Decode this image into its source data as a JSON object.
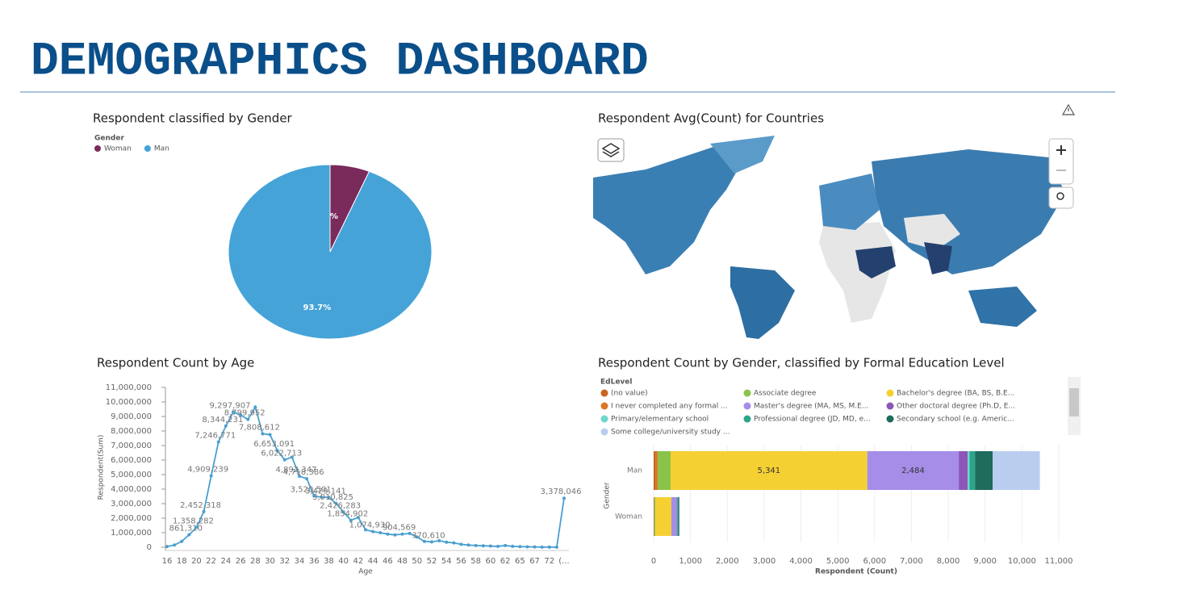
{
  "title": "DEMOGRAPHICS DASHBOARD",
  "chart_data": [
    {
      "type": "pie",
      "title": "Respondent classified by Gender",
      "legend_title": "Gender",
      "categories": [
        "Woman",
        "Man"
      ],
      "values": [
        6.3,
        93.7
      ],
      "value_labels": [
        "6.3%",
        "93.7%"
      ],
      "colors": [
        "#7b2a5c",
        "#45a3d8"
      ]
    },
    {
      "type": "map",
      "title": "Respondent Avg(Count) for Countries"
    },
    {
      "type": "line",
      "title": "Respondent Count by Age",
      "xlabel": "Age",
      "ylabel": "Respondent(Sum)",
      "categories": [
        "16",
        null,
        "18",
        null,
        "20",
        null,
        "22",
        null,
        "24",
        null,
        "26",
        null,
        "28",
        null,
        "30",
        null,
        "32",
        null,
        "34",
        null,
        "36",
        null,
        "38",
        null,
        "40",
        null,
        "42",
        null,
        "44",
        null,
        "46",
        null,
        "48",
        null,
        "50",
        null,
        "52",
        null,
        "54",
        null,
        "56",
        null,
        "58",
        null,
        "60",
        null,
        "62",
        null,
        "65",
        null,
        "67",
        null,
        "72",
        null,
        "(..."
      ],
      "values": [
        50000,
        150000,
        400000,
        861310,
        1358282,
        2452318,
        4909239,
        7246771,
        8344231,
        9297907,
        9100000,
        8799952,
        9650000,
        7808612,
        7750000,
        6653091,
        6022713,
        6200000,
        4892347,
        4718386,
        3520501,
        3450000,
        3429141,
        3010825,
        2426283,
        1854902,
        2050000,
        1200000,
        1074930,
        1000000,
        900000,
        850000,
        904569,
        950000,
        700000,
        400000,
        370610,
        450000,
        350000,
        300000,
        200000,
        150000,
        120000,
        100000,
        80000,
        60000,
        120000,
        60000,
        40000,
        30000,
        20000,
        10000,
        10000,
        5000,
        3378046
      ],
      "value_labels": [
        null,
        null,
        null,
        "861,310",
        "1,358,282",
        "2,452,318",
        "4,909,239",
        "7,246,771",
        "8,344,231",
        "9,297,907",
        null,
        "8,799,952",
        null,
        "7,808,612",
        null,
        "6,653,091",
        "6,022,713",
        null,
        "4,892,347",
        "4,718,386",
        "3,520,501",
        null,
        "3,429,141",
        "3,010,825",
        "2,426,283",
        "1,854,902",
        null,
        null,
        "1,074,930",
        null,
        null,
        null,
        "904,569",
        null,
        null,
        null,
        "370,610",
        null,
        null,
        null,
        null,
        null,
        null,
        null,
        null,
        null,
        null,
        null,
        null,
        null,
        null,
        null,
        null,
        null,
        "3,378,046"
      ],
      "color": "#4a9fcf",
      "ylim": [
        0,
        11000000
      ],
      "yticks": [
        0,
        {
          "value": 1000000,
          "label": "1,000,000"
        },
        {
          "value": 2000000,
          "label": "2,000,000"
        },
        {
          "value": 3000000,
          "label": "3,000,000"
        },
        {
          "value": 4000000,
          "label": "4,000,000"
        },
        {
          "value": 5000000,
          "label": "5,000,000"
        },
        {
          "value": 6000000,
          "label": "6,000,000"
        },
        {
          "value": 7000000,
          "label": "7,000,000"
        },
        {
          "value": 8000000,
          "label": "8,000,000"
        },
        {
          "value": 9000000,
          "label": "9,000,000"
        },
        {
          "value": 10000000,
          "label": "10,000,000"
        },
        {
          "value": 11000000,
          "label": "11,000,000"
        }
      ]
    },
    {
      "type": "hbar_stacked",
      "title": "Respondent Count by Gender, classified by Formal Education Level",
      "legend_title": "EdLevel",
      "xlabel": "Respondent (Count)",
      "ylabel": "Gender",
      "categories": [
        "Man",
        "Woman"
      ],
      "series": [
        {
          "name": "(no value)",
          "color": "#c8641e",
          "values": [
            60,
            10
          ]
        },
        {
          "name": "I never completed any formal ...",
          "color": "#d9782a",
          "values": [
            50,
            10
          ]
        },
        {
          "name": "Associate degree",
          "color": "#8bc34a",
          "values": [
            350,
            30
          ]
        },
        {
          "name": "Bachelor's degree (BA, BS, B.E...",
          "color": "#f5d033",
          "values": [
            5341,
            430
          ],
          "value_labels": [
            "5,341",
            null
          ]
        },
        {
          "name": "Master's degree (MA, MS, M.E...",
          "color": "#a58de8",
          "values": [
            2484,
            130
          ],
          "value_labels": [
            "2,484",
            null
          ]
        },
        {
          "name": "Other doctoral degree (Ph.D, E...",
          "color": "#8e55b8",
          "values": [
            240,
            20
          ]
        },
        {
          "name": "Primary/elementary school",
          "color": "#6fd6c8",
          "values": [
            50,
            10
          ]
        },
        {
          "name": "Professional degree (JD, MD, e...",
          "color": "#2ba58a",
          "values": [
            150,
            20
          ]
        },
        {
          "name": "Secondary school (e.g. Americ...",
          "color": "#1f6b5c",
          "values": [
            482,
            30
          ]
        },
        {
          "name": "Some college/university study ...",
          "color": "#b9cdef",
          "values": [
            1280,
            20
          ]
        }
      ],
      "xlim": [
        0,
        11000
      ],
      "xticks": [
        0,
        {
          "value": 1000,
          "label": "1,000"
        },
        {
          "value": 2000,
          "label": "2,000"
        },
        {
          "value": 3000,
          "label": "3,000"
        },
        {
          "value": 4000,
          "label": "4,000"
        },
        {
          "value": 5000,
          "label": "5,000"
        },
        {
          "value": 6000,
          "label": "6,000"
        },
        {
          "value": 7000,
          "label": "7,000"
        },
        {
          "value": 8000,
          "label": "8,000"
        },
        {
          "value": 9000,
          "label": "9,000"
        },
        {
          "value": 10000,
          "label": "10,000"
        },
        {
          "value": 11000,
          "label": "11,000"
        }
      ]
    }
  ]
}
